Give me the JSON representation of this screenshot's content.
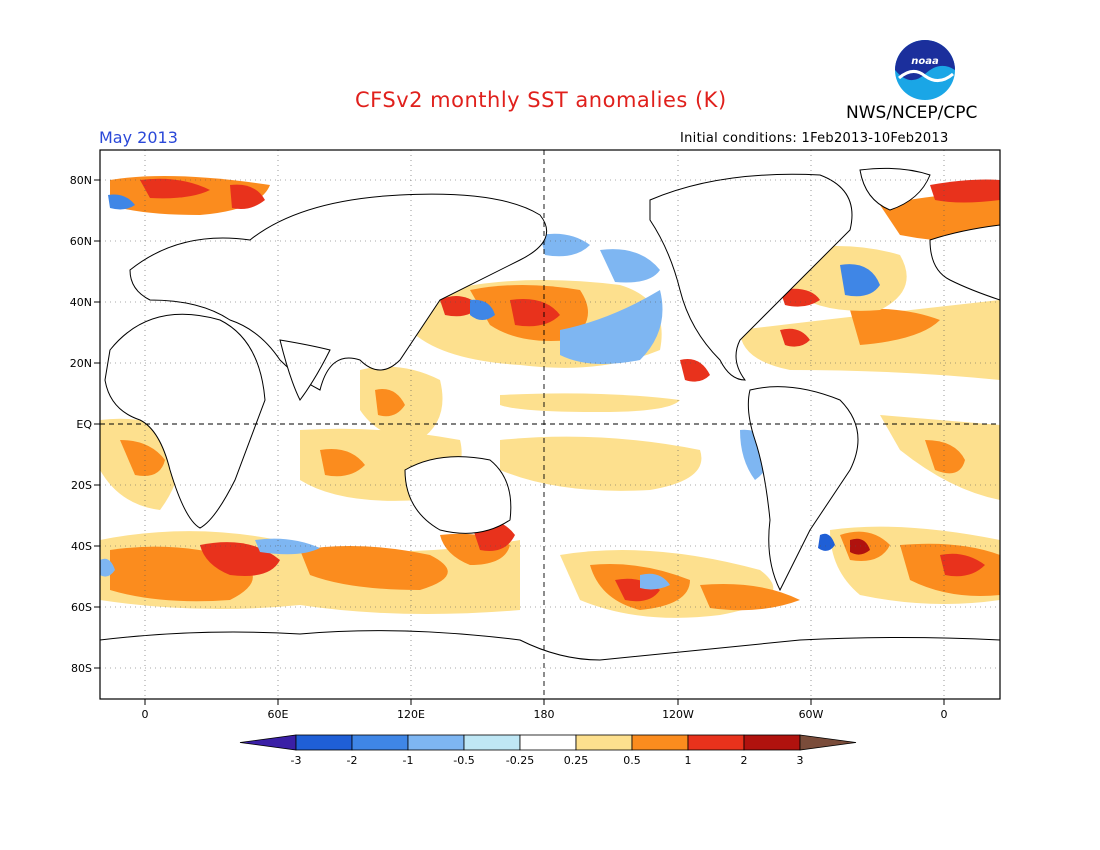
{
  "header": {
    "title": "CFSv2 monthly SST anomalies (K)",
    "agency": "NWS/NCEP/CPC",
    "month": "May 2013",
    "initial_conditions": "Initial conditions: 1Feb2013-10Feb2013"
  },
  "logo": {
    "text": "noaa"
  },
  "axes": {
    "lat_labels": [
      "80N",
      "60N",
      "40N",
      "20N",
      "EQ",
      "20S",
      "40S",
      "60S",
      "80S"
    ],
    "lon_labels": [
      "0",
      "60E",
      "120E",
      "180",
      "120W",
      "60W",
      "0"
    ]
  },
  "colorbar": {
    "labels": [
      "-3",
      "-2",
      "-1",
      "-0.5",
      "-0.25",
      "0.25",
      "0.5",
      "1",
      "2",
      "3"
    ],
    "colors": [
      "#3a1fa6",
      "#1f5fd6",
      "#3f86e6",
      "#7eb6f2",
      "#bfe7f5",
      "#ffffff",
      "#fde08e",
      "#fb8c1e",
      "#e8321c",
      "#b0120e",
      "#7a4c3a"
    ]
  },
  "palette": {
    "light_yellow": "#fde08e",
    "orange": "#fb8c1e",
    "red": "#e8321c",
    "dark_red": "#b0120e",
    "light_cyan": "#bfe7f5",
    "light_blue": "#7eb6f2",
    "mid_blue": "#3f86e6",
    "dark_blue": "#1f5fd6"
  }
}
